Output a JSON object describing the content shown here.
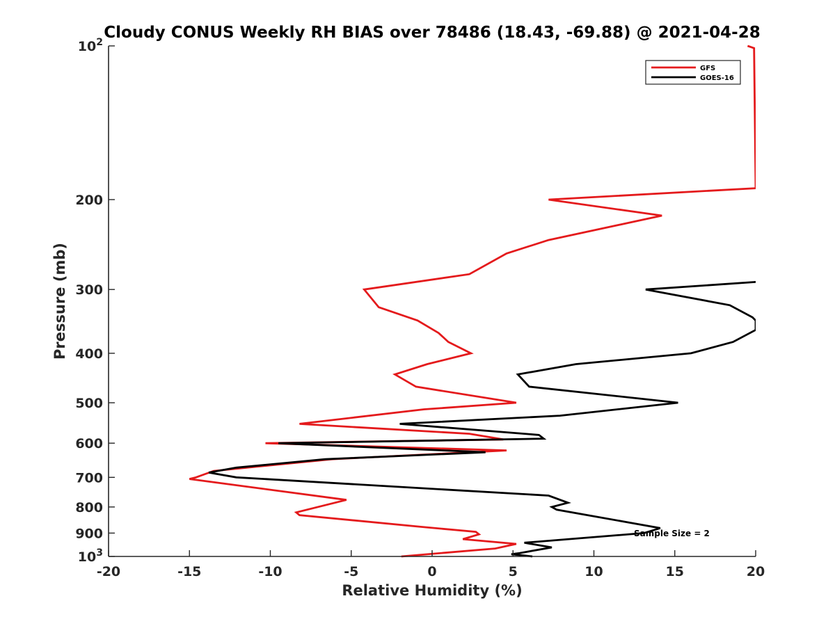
{
  "chart_data": {
    "type": "line",
    "title": "Cloudy CONUS Weekly RH BIAS over 78486 (18.43, -69.88) @ 2021-04-28",
    "xlabel": "Relative Humidity (%)",
    "ylabel": "Pressure (mb)",
    "xlim": [
      -20,
      20
    ],
    "ylim": [
      100,
      1000
    ],
    "y_scale": "log",
    "y_reversed": true,
    "x_ticks": [
      "-20",
      "-15",
      "-10",
      "-5",
      "0",
      "5",
      "10",
      "15",
      "20"
    ],
    "y_ticks": [
      {
        "value": 100,
        "label": "10",
        "sup": "2"
      },
      {
        "value": 200,
        "label": "200",
        "sup": ""
      },
      {
        "value": 300,
        "label": "300",
        "sup": ""
      },
      {
        "value": 400,
        "label": "400",
        "sup": ""
      },
      {
        "value": 500,
        "label": "500",
        "sup": ""
      },
      {
        "value": 600,
        "label": "600",
        "sup": ""
      },
      {
        "value": 700,
        "label": "700",
        "sup": ""
      },
      {
        "value": 800,
        "label": "800",
        "sup": ""
      },
      {
        "value": 900,
        "label": "900",
        "sup": ""
      },
      {
        "value": 1000,
        "label": "10",
        "sup": "3"
      }
    ],
    "grid": false,
    "legend_position": "top-right",
    "annotation": "Sample Size = 2",
    "series": [
      {
        "name": "GFS",
        "color": "#e41a1c",
        "points": [
          [
            19.5,
            100
          ],
          [
            19.9,
            101
          ],
          [
            20,
            190
          ],
          [
            7.2,
            200
          ],
          [
            14.2,
            215
          ],
          [
            7.2,
            240
          ],
          [
            4.6,
            255
          ],
          [
            2.3,
            280
          ],
          [
            -4.2,
            300
          ],
          [
            -3.3,
            325
          ],
          [
            -0.9,
            345
          ],
          [
            0.4,
            365
          ],
          [
            1.0,
            380
          ],
          [
            2.4,
            400
          ],
          [
            -0.3,
            420
          ],
          [
            -2.3,
            440
          ],
          [
            -1.0,
            465
          ],
          [
            5.2,
            500
          ],
          [
            -0.5,
            515
          ],
          [
            -8.2,
            550
          ],
          [
            2.3,
            575
          ],
          [
            4.4,
            590
          ],
          [
            -10.3,
            600
          ],
          [
            4.6,
            620
          ],
          [
            -6.2,
            645
          ],
          [
            -13.5,
            680
          ],
          [
            -14.6,
            700
          ],
          [
            -15.0,
            705
          ],
          [
            -5.3,
            775
          ],
          [
            -8.4,
            820
          ],
          [
            -8.2,
            830
          ],
          [
            -0.7,
            875
          ],
          [
            2.7,
            895
          ],
          [
            2.9,
            905
          ],
          [
            1.9,
            925
          ],
          [
            5.2,
            945
          ],
          [
            3.9,
            965
          ],
          [
            -1.9,
            1000
          ]
        ]
      },
      {
        "name": "GOES-16",
        "color": "#000000",
        "points": [
          [
            20,
            290
          ],
          [
            13.2,
            300
          ],
          [
            18.4,
            322
          ],
          [
            19.8,
            340
          ],
          [
            20,
            345
          ],
          [
            20,
            360
          ],
          [
            18.6,
            380
          ],
          [
            16.0,
            400
          ],
          [
            8.9,
            420
          ],
          [
            5.3,
            440
          ],
          [
            6.0,
            465
          ],
          [
            15.2,
            500
          ],
          [
            7.9,
            530
          ],
          [
            -2.0,
            550
          ],
          [
            6.6,
            578
          ],
          [
            6.9,
            588
          ],
          [
            -9.5,
            600
          ],
          [
            3.3,
            625
          ],
          [
            -6.6,
            645
          ],
          [
            -12.1,
            670
          ],
          [
            -13.8,
            685
          ],
          [
            -12.1,
            700
          ],
          [
            7.2,
            760
          ],
          [
            8.4,
            785
          ],
          [
            7.4,
            800
          ],
          [
            7.7,
            810
          ],
          [
            11.9,
            855
          ],
          [
            14.1,
            880
          ],
          [
            13.1,
            900
          ],
          [
            5.7,
            940
          ],
          [
            7.4,
            960
          ],
          [
            5.4,
            985
          ],
          [
            4.9,
            990
          ],
          [
            6.2,
            1000
          ]
        ]
      }
    ]
  }
}
